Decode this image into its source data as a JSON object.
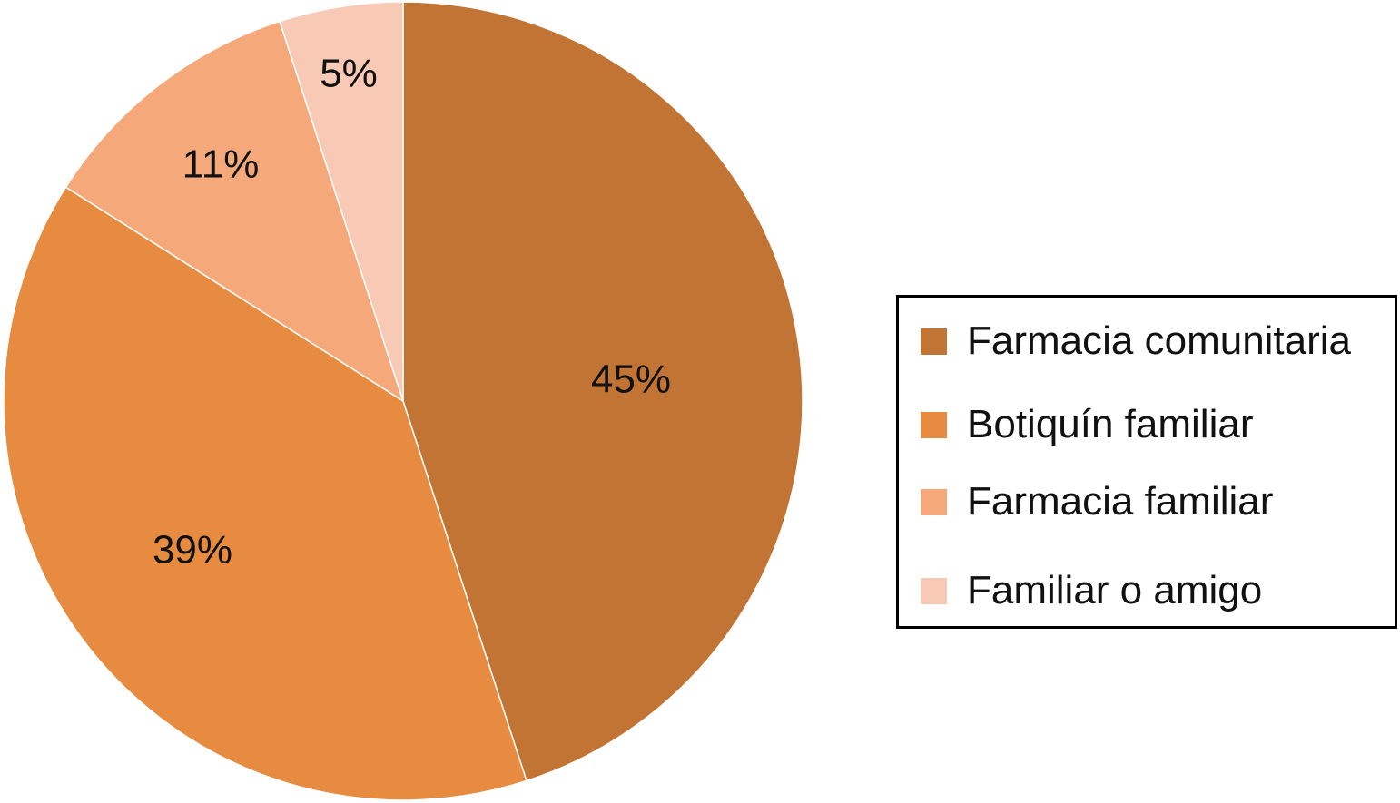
{
  "chart_data": {
    "type": "pie",
    "title": "",
    "start_angle": "12 o'clock, clockwise",
    "categories": [
      "Farmacia comunitaria",
      "Botiquín familiar",
      "Farmacia familiar",
      "Familiar o amigo"
    ],
    "values": [
      45,
      39,
      11,
      5
    ],
    "labels": [
      "45%",
      "39%",
      "11%",
      "5%"
    ],
    "colors": [
      "#C17433",
      "#E68B40",
      "#F5A97A",
      "#F8CAB6"
    ],
    "legend": {
      "placement": "right",
      "entries": [
        "Farmacia comunitaria",
        "Botiquín familiar",
        "Farmacia familiar",
        "Familiar o amigo"
      ]
    }
  }
}
